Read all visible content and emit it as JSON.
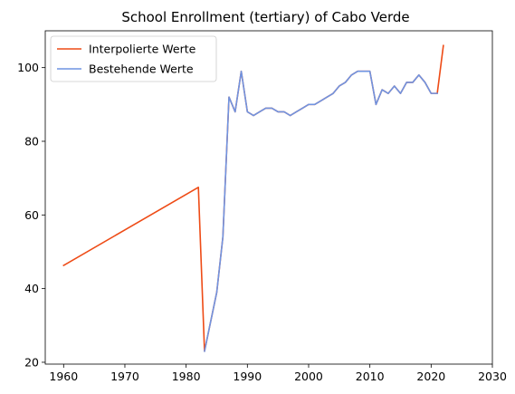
{
  "chart_data": {
    "type": "line",
    "title": "School Enrollment (tertiary) of Cabo Verde",
    "xlabel": "",
    "ylabel": "",
    "xlim": [
      1957,
      2030
    ],
    "ylim": [
      19.5,
      110
    ],
    "xticks": [
      1960,
      1970,
      1980,
      1990,
      2000,
      2010,
      2020,
      2030
    ],
    "yticks": [
      20,
      40,
      60,
      80,
      100
    ],
    "grid": false,
    "legend_position": "top-left",
    "series": [
      {
        "name": "Interpolierte Werte",
        "color": "#ee4b16",
        "points": [
          [
            1960,
            46.3
          ],
          [
            1982,
            67.5
          ],
          [
            1983,
            23
          ],
          [
            1985,
            39
          ],
          [
            1986,
            54
          ],
          [
            1987,
            92
          ],
          [
            1988,
            88
          ],
          [
            1989,
            99
          ],
          [
            1990,
            88
          ],
          [
            1991,
            87
          ],
          [
            1992,
            88
          ],
          [
            1993,
            89
          ],
          [
            1994,
            89
          ],
          [
            1995,
            88
          ],
          [
            1996,
            88
          ],
          [
            1997,
            87
          ],
          [
            1998,
            88
          ],
          [
            1999,
            89
          ],
          [
            2000,
            90
          ],
          [
            2001,
            90
          ],
          [
            2002,
            91
          ],
          [
            2003,
            92
          ],
          [
            2004,
            93
          ],
          [
            2005,
            95
          ],
          [
            2006,
            96
          ],
          [
            2007,
            98
          ],
          [
            2008,
            99
          ],
          [
            2009,
            99
          ],
          [
            2010,
            99
          ],
          [
            2011,
            90
          ],
          [
            2012,
            94
          ],
          [
            2013,
            93
          ],
          [
            2014,
            95
          ],
          [
            2015,
            93
          ],
          [
            2016,
            96
          ],
          [
            2017,
            96
          ],
          [
            2018,
            98
          ],
          [
            2019,
            96
          ],
          [
            2020,
            93
          ],
          [
            2021,
            93
          ],
          [
            2022,
            106
          ]
        ]
      },
      {
        "name": "Bestehende Werte",
        "color": "#6f94e2",
        "points": [
          [
            1983,
            23
          ],
          [
            1985,
            39
          ],
          [
            1986,
            54
          ],
          [
            1987,
            92
          ],
          [
            1988,
            88
          ],
          [
            1989,
            99
          ],
          [
            1990,
            88
          ],
          [
            1991,
            87
          ],
          [
            1992,
            88
          ],
          [
            1993,
            89
          ],
          [
            1994,
            89
          ],
          [
            1995,
            88
          ],
          [
            1996,
            88
          ],
          [
            1997,
            87
          ],
          [
            1998,
            88
          ],
          [
            1999,
            89
          ],
          [
            2000,
            90
          ],
          [
            2001,
            90
          ],
          [
            2002,
            91
          ],
          [
            2003,
            92
          ],
          [
            2004,
            93
          ],
          [
            2005,
            95
          ],
          [
            2006,
            96
          ],
          [
            2007,
            98
          ],
          [
            2008,
            99
          ],
          [
            2009,
            99
          ],
          [
            2010,
            99
          ],
          [
            2011,
            90
          ],
          [
            2012,
            94
          ],
          [
            2013,
            93
          ],
          [
            2014,
            95
          ],
          [
            2015,
            93
          ],
          [
            2016,
            96
          ],
          [
            2017,
            96
          ],
          [
            2018,
            98
          ],
          [
            2019,
            96
          ],
          [
            2020,
            93
          ],
          [
            2021,
            93
          ]
        ]
      }
    ]
  }
}
